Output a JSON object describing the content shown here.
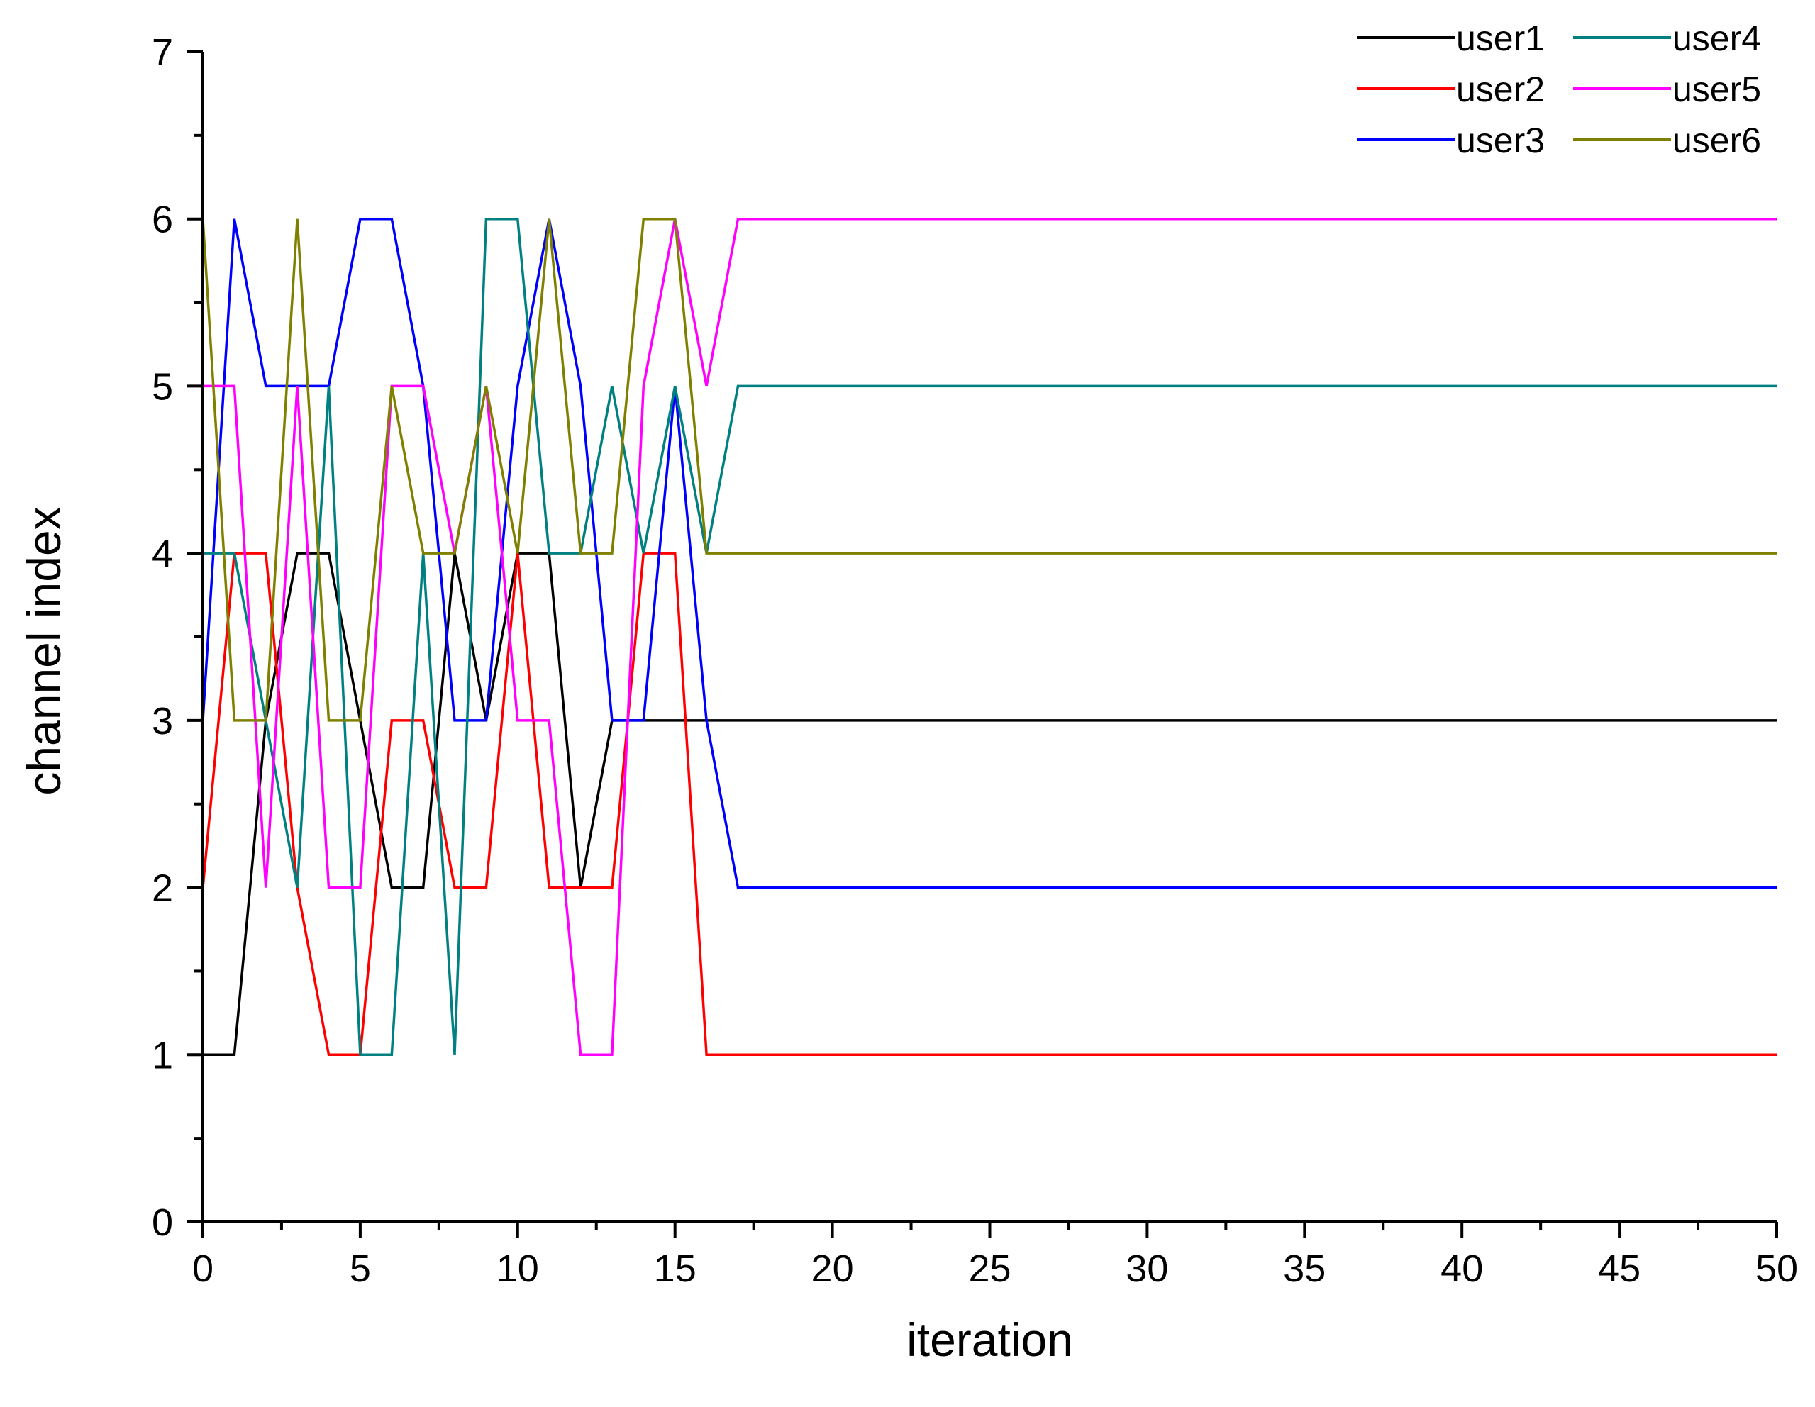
{
  "chart_data": {
    "type": "line",
    "title": "",
    "xlabel": "iteration",
    "ylabel": "channel index",
    "xlim": [
      0,
      50
    ],
    "ylim": [
      0,
      7
    ],
    "xticks": [
      0,
      5,
      10,
      15,
      20,
      25,
      30,
      35,
      40,
      45,
      50
    ],
    "yticks": [
      0,
      1,
      2,
      3,
      4,
      5,
      6,
      7
    ],
    "xtick_labels": [
      "0",
      "5",
      "10",
      "15",
      "20",
      "25",
      "30",
      "35",
      "40",
      "45",
      "50"
    ],
    "ytick_labels": [
      "0",
      "1",
      "2",
      "3",
      "4",
      "5",
      "6",
      "7"
    ],
    "grid": false,
    "legend_position": "top-right",
    "x": [
      0,
      1,
      2,
      3,
      4,
      5,
      6,
      7,
      8,
      9,
      10,
      11,
      12,
      13,
      14,
      15,
      16,
      17,
      18,
      19,
      20,
      21,
      22,
      23,
      24,
      25,
      26,
      27,
      28,
      29,
      30,
      31,
      32,
      33,
      34,
      35,
      36,
      37,
      38,
      39,
      40,
      41,
      42,
      43,
      44,
      45,
      46,
      47,
      48,
      49,
      50
    ],
    "series": [
      {
        "name": "user1",
        "color": "#000000",
        "values": [
          1,
          1,
          3,
          4,
          4,
          3,
          2,
          2,
          4,
          3,
          4,
          4,
          2,
          3,
          3,
          3,
          3,
          3,
          3,
          3,
          3,
          3,
          3,
          3,
          3,
          3,
          3,
          3,
          3,
          3,
          3,
          3,
          3,
          3,
          3,
          3,
          3,
          3,
          3,
          3,
          3,
          3,
          3,
          3,
          3,
          3,
          3,
          3,
          3,
          3,
          3
        ]
      },
      {
        "name": "user2",
        "color": "#ff0000",
        "values": [
          2,
          4,
          4,
          2,
          1,
          1,
          3,
          3,
          2,
          2,
          4,
          2,
          2,
          2,
          4,
          4,
          1,
          1,
          1,
          1,
          1,
          1,
          1,
          1,
          1,
          1,
          1,
          1,
          1,
          1,
          1,
          1,
          1,
          1,
          1,
          1,
          1,
          1,
          1,
          1,
          1,
          1,
          1,
          1,
          1,
          1,
          1,
          1,
          1,
          1,
          1
        ]
      },
      {
        "name": "user3",
        "color": "#0000ff",
        "values": [
          3,
          6,
          5,
          5,
          5,
          6,
          6,
          5,
          3,
          3,
          5,
          6,
          5,
          3,
          3,
          5,
          3,
          2,
          2,
          2,
          2,
          2,
          2,
          2,
          2,
          2,
          2,
          2,
          2,
          2,
          2,
          2,
          2,
          2,
          2,
          2,
          2,
          2,
          2,
          2,
          2,
          2,
          2,
          2,
          2,
          2,
          2,
          2,
          2,
          2,
          2
        ]
      },
      {
        "name": "user4",
        "color": "#008080",
        "values": [
          4,
          4,
          3,
          2,
          5,
          1,
          1,
          4,
          1,
          6,
          6,
          4,
          4,
          5,
          4,
          5,
          4,
          5,
          5,
          5,
          5,
          5,
          5,
          5,
          5,
          5,
          5,
          5,
          5,
          5,
          5,
          5,
          5,
          5,
          5,
          5,
          5,
          5,
          5,
          5,
          5,
          5,
          5,
          5,
          5,
          5,
          5,
          5,
          5,
          5,
          5
        ]
      },
      {
        "name": "user5",
        "color": "#ff00ff",
        "values": [
          5,
          5,
          2,
          5,
          2,
          2,
          5,
          5,
          4,
          5,
          3,
          3,
          1,
          1,
          5,
          6,
          5,
          6,
          6,
          6,
          6,
          6,
          6,
          6,
          6,
          6,
          6,
          6,
          6,
          6,
          6,
          6,
          6,
          6,
          6,
          6,
          6,
          6,
          6,
          6,
          6,
          6,
          6,
          6,
          6,
          6,
          6,
          6,
          6,
          6,
          6
        ]
      },
      {
        "name": "user6",
        "color": "#808000",
        "values": [
          6,
          3,
          3,
          6,
          3,
          3,
          5,
          4,
          4,
          5,
          4,
          6,
          4,
          4,
          6,
          6,
          4,
          4,
          4,
          4,
          4,
          4,
          4,
          4,
          4,
          4,
          4,
          4,
          4,
          4,
          4,
          4,
          4,
          4,
          4,
          4,
          4,
          4,
          4,
          4,
          4,
          4,
          4,
          4,
          4,
          4,
          4,
          4,
          4,
          4,
          4
        ]
      }
    ]
  }
}
